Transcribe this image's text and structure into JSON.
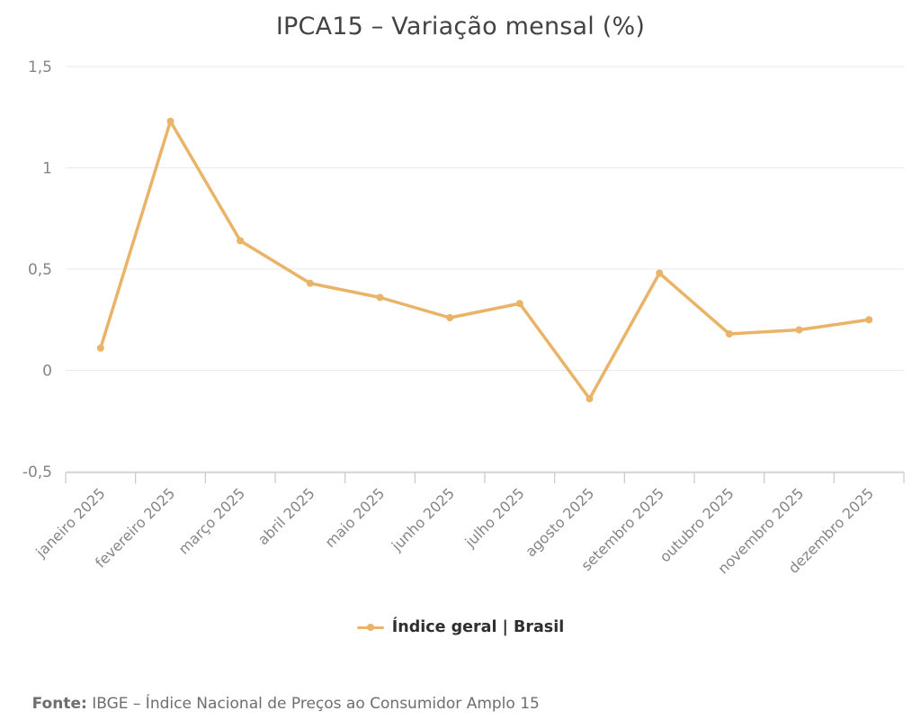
{
  "chart": {
    "title": "IPCA15 – Variação mensal (%)",
    "legend_label": "Índice geral | Brasil"
  },
  "footer": {
    "prefix": "Fonte:",
    "text": " IBGE – Índice Nacional de Preços ao Consumidor Amplo 15"
  },
  "colors": {
    "series": "#E9B468",
    "grid": "#e9e9e9",
    "axis": "#c9c9c9",
    "tick_label": "#858585",
    "title": "#434343"
  },
  "chart_data": {
    "type": "line",
    "title": "IPCA15 – Variação mensal (%)",
    "categories": [
      "janeiro 2025",
      "fevereiro 2025",
      "março 2025",
      "abril 2025",
      "maio 2025",
      "junho 2025",
      "julho 2025",
      "agosto 2025",
      "setembro 2025",
      "outubro 2025",
      "novembro 2025",
      "dezembro 2025"
    ],
    "series": [
      {
        "name": "Índice geral | Brasil",
        "values": [
          0.11,
          1.23,
          0.64,
          0.43,
          0.36,
          0.26,
          0.33,
          -0.14,
          0.48,
          0.18,
          0.2,
          0.25
        ]
      }
    ],
    "xlabel": "",
    "ylabel": "",
    "ylim": [
      -0.5,
      1.5
    ],
    "yticks": [
      {
        "value": 1.5,
        "label": "1,5"
      },
      {
        "value": 1.0,
        "label": "1"
      },
      {
        "value": 0.5,
        "label": "0,5"
      },
      {
        "value": 0.0,
        "label": "0"
      },
      {
        "value": -0.5,
        "label": "-0,5"
      }
    ],
    "grid": true,
    "legend_position": "bottom",
    "source": "IBGE – Índice Nacional de Preços ao Consumidor Amplo 15"
  }
}
